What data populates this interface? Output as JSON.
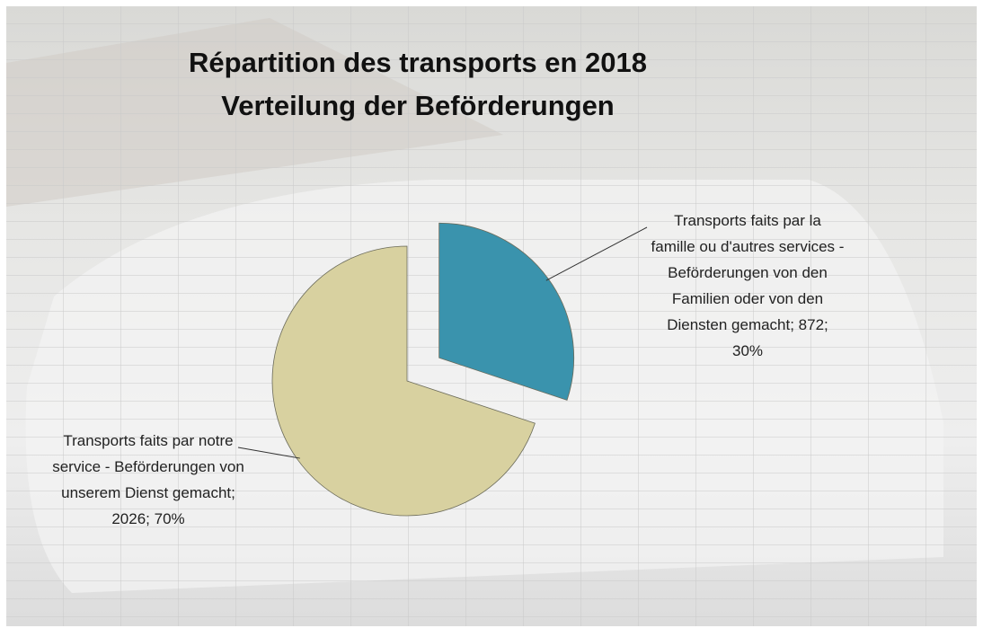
{
  "chart_data": {
    "type": "pie",
    "title": [
      "Répartition des transports en 2018",
      "Verteilung der Beförderungen"
    ],
    "values": [
      872,
      2026
    ],
    "data_labels": [
      "Transports faits par la famille ou d'autres services - Beförderungen von den Familien oder von den Diensten gemacht; 872; 30%",
      "Transports faits par notre service - Beförderungen von unserem Dienst gemacht; 2026; 70%"
    ],
    "colors": [
      "#3a93ad",
      "#d8d1a0"
    ],
    "exploded": [
      true,
      false
    ]
  }
}
